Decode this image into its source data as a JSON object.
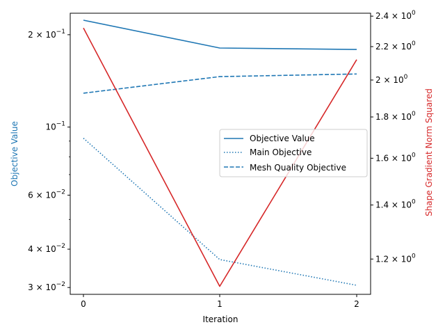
{
  "chart_data": {
    "type": "line",
    "xlabel": "Iteration",
    "x": [
      0,
      1,
      2
    ],
    "x_ticks": [
      "0",
      "1",
      "2"
    ],
    "left_axis": {
      "label": "Objective Value",
      "color": "#1f77b4",
      "scale": "log",
      "ylim": [
        0.0285,
        0.235
      ],
      "major_ticks": [
        {
          "value": 0.03,
          "base": "3 × 10",
          "exp": "−2"
        },
        {
          "value": 0.04,
          "base": "4 × 10",
          "exp": "−2"
        },
        {
          "value": 0.06,
          "base": "6 × 10",
          "exp": "−2"
        },
        {
          "value": 0.1,
          "base": "10",
          "exp": "−1"
        },
        {
          "value": 0.2,
          "base": "2 × 10",
          "exp": "−1"
        }
      ],
      "minor_ticks": [
        0.05,
        0.07,
        0.08,
        0.09
      ]
    },
    "right_axis": {
      "label": "Shape Gradient Norm Squared",
      "color": "#d62728",
      "scale": "log",
      "ylim": [
        1.085,
        2.42
      ],
      "ticks": [
        {
          "value": 1.2,
          "base": "1.2 × 10",
          "exp": "0"
        },
        {
          "value": 1.4,
          "base": "1.4 × 10",
          "exp": "0"
        },
        {
          "value": 1.6,
          "base": "1.6 × 10",
          "exp": "0"
        },
        {
          "value": 1.8,
          "base": "1.8 × 10",
          "exp": "0"
        },
        {
          "value": 2.0,
          "base": "2 × 10",
          "exp": "0"
        },
        {
          "value": 2.2,
          "base": "2.2 × 10",
          "exp": "0"
        },
        {
          "value": 2.4,
          "base": "2.4 × 10",
          "exp": "0"
        }
      ]
    },
    "series": [
      {
        "name": "Objective Value",
        "axis": "left",
        "color": "#1f77b4",
        "style": "solid",
        "values": [
          0.223,
          0.181,
          0.179
        ]
      },
      {
        "name": "Main Objective",
        "axis": "left",
        "color": "#1f77b4",
        "style": "dotted",
        "values": [
          0.092,
          0.037,
          0.0305
        ]
      },
      {
        "name": "Mesh Quality Objective",
        "axis": "left",
        "color": "#1f77b4",
        "style": "dashed",
        "values": [
          0.129,
          0.146,
          0.149
        ]
      },
      {
        "name": "",
        "axis": "right",
        "color": "#d62728",
        "style": "solid",
        "values": [
          2.32,
          1.11,
          2.12
        ]
      }
    ],
    "legend": {
      "position": "center-right",
      "entries": [
        "Objective Value",
        "Main Objective",
        "Mesh Quality Objective"
      ]
    }
  }
}
